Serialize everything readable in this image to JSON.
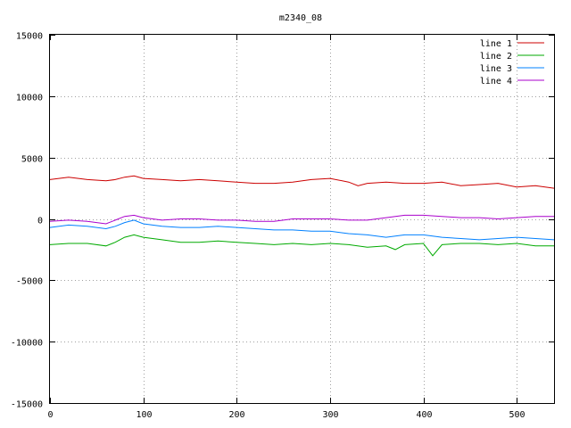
{
  "chart_data": {
    "type": "line",
    "title": "m2340_08",
    "xlabel": "",
    "ylabel": "",
    "xlim": [
      0,
      540
    ],
    "ylim": [
      -15000,
      15000
    ],
    "xticks": [
      0,
      100,
      200,
      300,
      400,
      500
    ],
    "yticks": [
      -15000,
      -10000,
      -5000,
      0,
      5000,
      10000,
      15000
    ],
    "grid": true,
    "legend": "top-right",
    "series": [
      {
        "name": "line 1",
        "color": "#cc0000",
        "x": [
          0,
          20,
          40,
          60,
          70,
          80,
          90,
          100,
          120,
          140,
          160,
          180,
          200,
          220,
          240,
          260,
          280,
          300,
          320,
          330,
          340,
          360,
          380,
          400,
          420,
          440,
          460,
          480,
          500,
          520,
          540
        ],
        "values": [
          3200,
          3400,
          3200,
          3100,
          3200,
          3400,
          3500,
          3300,
          3200,
          3100,
          3200,
          3100,
          3000,
          2900,
          2900,
          3000,
          3200,
          3300,
          3000,
          2700,
          2900,
          3000,
          2900,
          2900,
          3000,
          2700,
          2800,
          2900,
          2600,
          2700,
          2500
        ]
      },
      {
        "name": "line 2",
        "color": "#00aa00",
        "x": [
          0,
          20,
          40,
          60,
          70,
          80,
          90,
          100,
          120,
          140,
          160,
          180,
          200,
          220,
          240,
          260,
          280,
          300,
          320,
          340,
          360,
          370,
          380,
          400,
          410,
          420,
          440,
          460,
          480,
          500,
          520,
          540
        ],
        "values": [
          -2100,
          -2000,
          -2000,
          -2200,
          -1900,
          -1500,
          -1300,
          -1500,
          -1700,
          -1900,
          -1900,
          -1800,
          -1900,
          -2000,
          -2100,
          -2000,
          -2100,
          -2000,
          -2100,
          -2300,
          -2200,
          -2500,
          -2100,
          -2000,
          -3000,
          -2100,
          -2000,
          -2000,
          -2100,
          -2000,
          -2200,
          -2200
        ]
      },
      {
        "name": "line 3",
        "color": "#0080ff",
        "x": [
          0,
          20,
          40,
          60,
          70,
          80,
          90,
          100,
          120,
          140,
          160,
          180,
          200,
          220,
          240,
          260,
          280,
          300,
          320,
          340,
          360,
          380,
          400,
          420,
          440,
          460,
          480,
          500,
          520,
          540
        ],
        "values": [
          -700,
          -500,
          -600,
          -800,
          -600,
          -300,
          -100,
          -400,
          -600,
          -700,
          -700,
          -600,
          -700,
          -800,
          -900,
          -900,
          -1000,
          -1000,
          -1200,
          -1300,
          -1500,
          -1300,
          -1300,
          -1500,
          -1600,
          -1700,
          -1600,
          -1500,
          -1600,
          -1700
        ]
      },
      {
        "name": "line 4",
        "color": "#aa00cc",
        "x": [
          0,
          20,
          40,
          60,
          70,
          80,
          90,
          100,
          120,
          140,
          160,
          180,
          200,
          220,
          240,
          260,
          280,
          300,
          320,
          340,
          360,
          380,
          400,
          420,
          440,
          460,
          480,
          500,
          520,
          540
        ],
        "values": [
          -200,
          -100,
          -200,
          -400,
          -100,
          200,
          300,
          100,
          -100,
          0,
          0,
          -100,
          -100,
          -200,
          -200,
          0,
          0,
          0,
          -100,
          -100,
          100,
          300,
          300,
          200,
          100,
          100,
          0,
          100,
          200,
          200
        ]
      }
    ]
  }
}
